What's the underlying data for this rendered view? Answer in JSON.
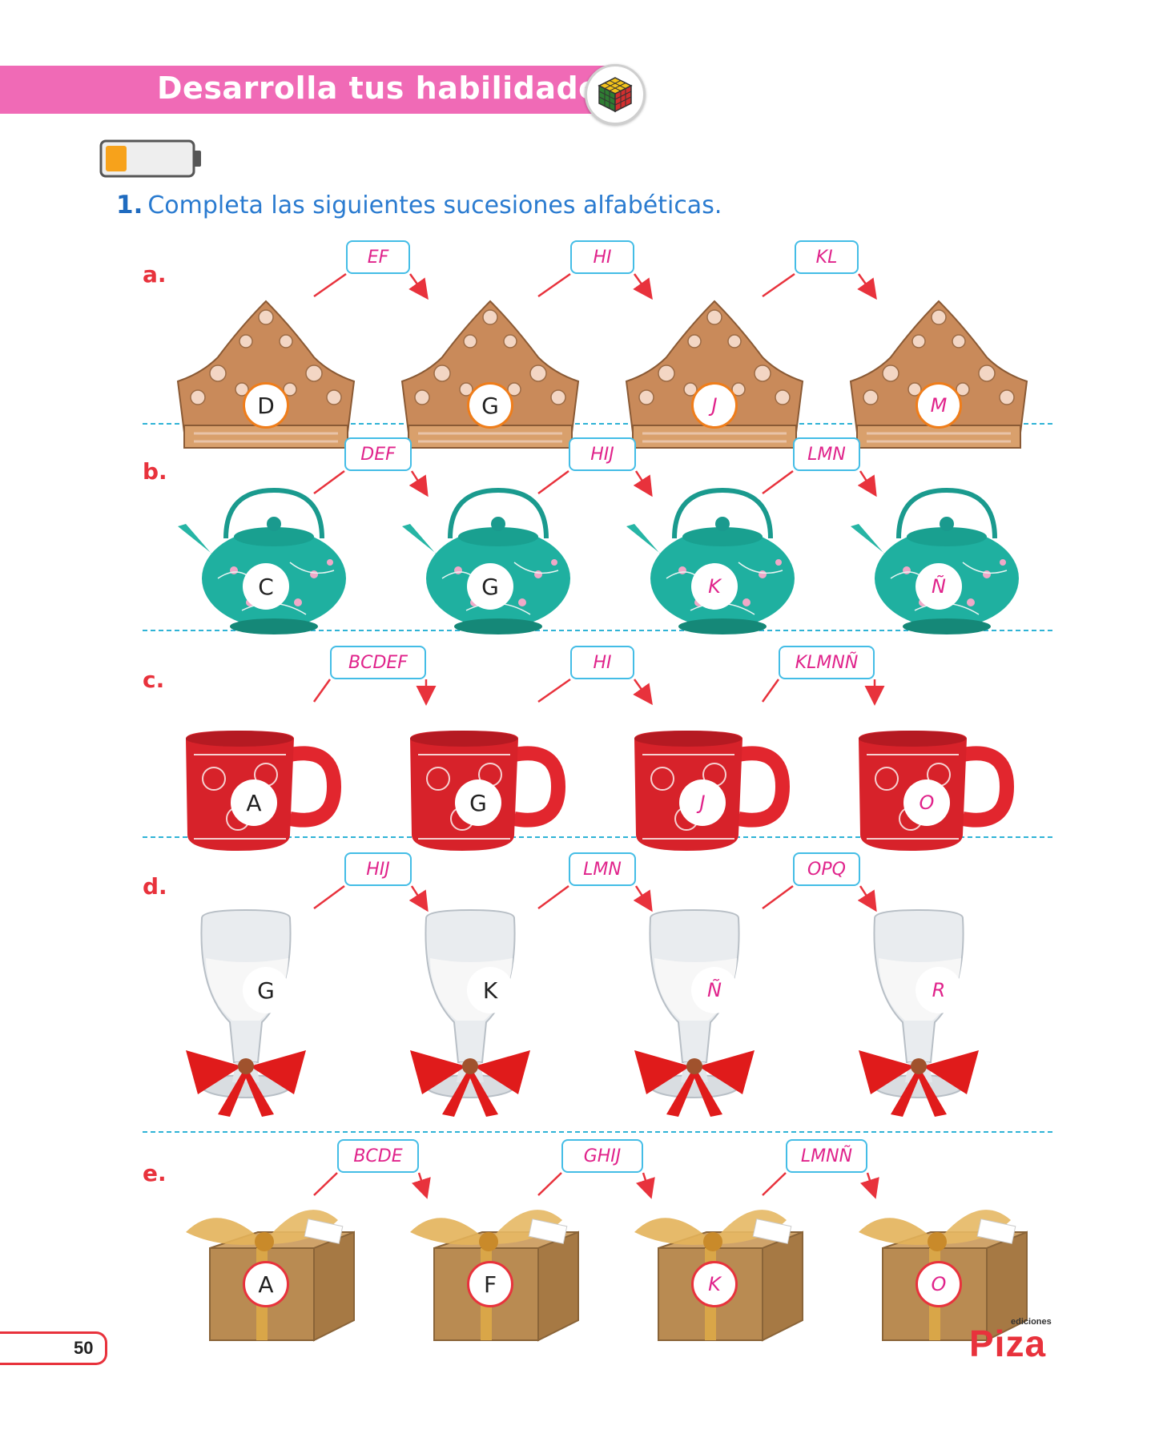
{
  "header": {
    "title": "Desarrolla tus habilidades",
    "badge_icon": "rubik-cube-icon"
  },
  "level_indicator": {
    "icon": "battery-icon",
    "fill_fraction": 0.25
  },
  "question": {
    "number": "1.",
    "text": "Completa las siguientes sucesiones alfabéticas."
  },
  "rows": [
    {
      "label": "a.",
      "object": "tiara",
      "items": [
        "D",
        "G",
        "J",
        "M"
      ],
      "answer_items": [
        false,
        false,
        true,
        true
      ],
      "links": [
        "EF",
        "HI",
        "KL"
      ]
    },
    {
      "label": "b.",
      "object": "teapot",
      "items": [
        "C",
        "G",
        "K",
        "Ñ"
      ],
      "answer_items": [
        false,
        false,
        true,
        true
      ],
      "links": [
        "DEF",
        "HIJ",
        "LMN"
      ]
    },
    {
      "label": "c.",
      "object": "mug",
      "items": [
        "A",
        "G",
        "J",
        "O"
      ],
      "answer_items": [
        false,
        false,
        true,
        true
      ],
      "links": [
        "BCDEF",
        "HI",
        "KLMNÑ"
      ]
    },
    {
      "label": "d.",
      "object": "wine-glass",
      "items": [
        "G",
        "K",
        "Ñ",
        "R"
      ],
      "answer_items": [
        false,
        false,
        true,
        true
      ],
      "links": [
        "HIJ",
        "LMN",
        "OPQ"
      ]
    },
    {
      "label": "e.",
      "object": "gift-box",
      "items": [
        "A",
        "F",
        "K",
        "O"
      ],
      "answer_items": [
        false,
        false,
        true,
        true
      ],
      "links": [
        "BCDE",
        "GHIJ",
        "LMNÑ"
      ]
    }
  ],
  "footer": {
    "page_number": "50",
    "brand_small": "ediciones",
    "brand": "Piza"
  }
}
